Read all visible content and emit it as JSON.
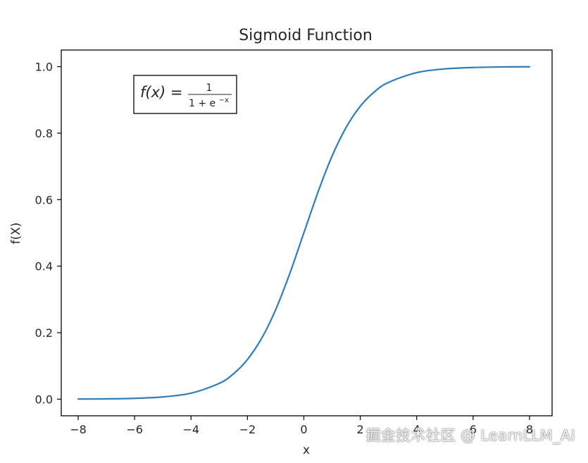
{
  "chart_data": {
    "type": "line",
    "title": "Sigmoid Function",
    "xlabel": "x",
    "ylabel": "f(X)",
    "xlim": [
      -8.6,
      8.8
    ],
    "ylim": [
      -0.05,
      1.05
    ],
    "x_ticks": [
      -8,
      -6,
      -4,
      -2,
      0,
      2,
      4,
      6,
      8
    ],
    "x_tick_labels": [
      "−8",
      "−6",
      "−4",
      "−2",
      "0",
      "2",
      "4",
      "6",
      "8"
    ],
    "y_ticks": [
      0.0,
      0.2,
      0.4,
      0.6,
      0.8,
      1.0
    ],
    "y_tick_labels": [
      "0.0",
      "0.2",
      "0.4",
      "0.6",
      "0.8",
      "1.0"
    ],
    "grid": false,
    "series": [
      {
        "color": "#2e7db9",
        "x": [
          -8,
          -7,
          -6,
          -5,
          -4,
          -3,
          -2.5,
          -2,
          -1.5,
          -1,
          -0.5,
          0,
          0.5,
          1,
          1.5,
          2,
          2.5,
          3,
          4,
          5,
          6,
          7,
          8
        ],
        "y": [
          0.0003,
          0.0009,
          0.0025,
          0.0067,
          0.018,
          0.0474,
          0.0759,
          0.1192,
          0.1824,
          0.2689,
          0.3775,
          0.5,
          0.6225,
          0.7311,
          0.8176,
          0.8808,
          0.9241,
          0.9526,
          0.982,
          0.9933,
          0.9975,
          0.9991,
          0.9997
        ]
      }
    ],
    "annotation": {
      "lhs": "f(x) =",
      "numerator": "1",
      "denominator_base": "1 + e",
      "denominator_exponent": "−x"
    }
  },
  "watermark": "掘金技术社区 @ LearnLLM_AI"
}
